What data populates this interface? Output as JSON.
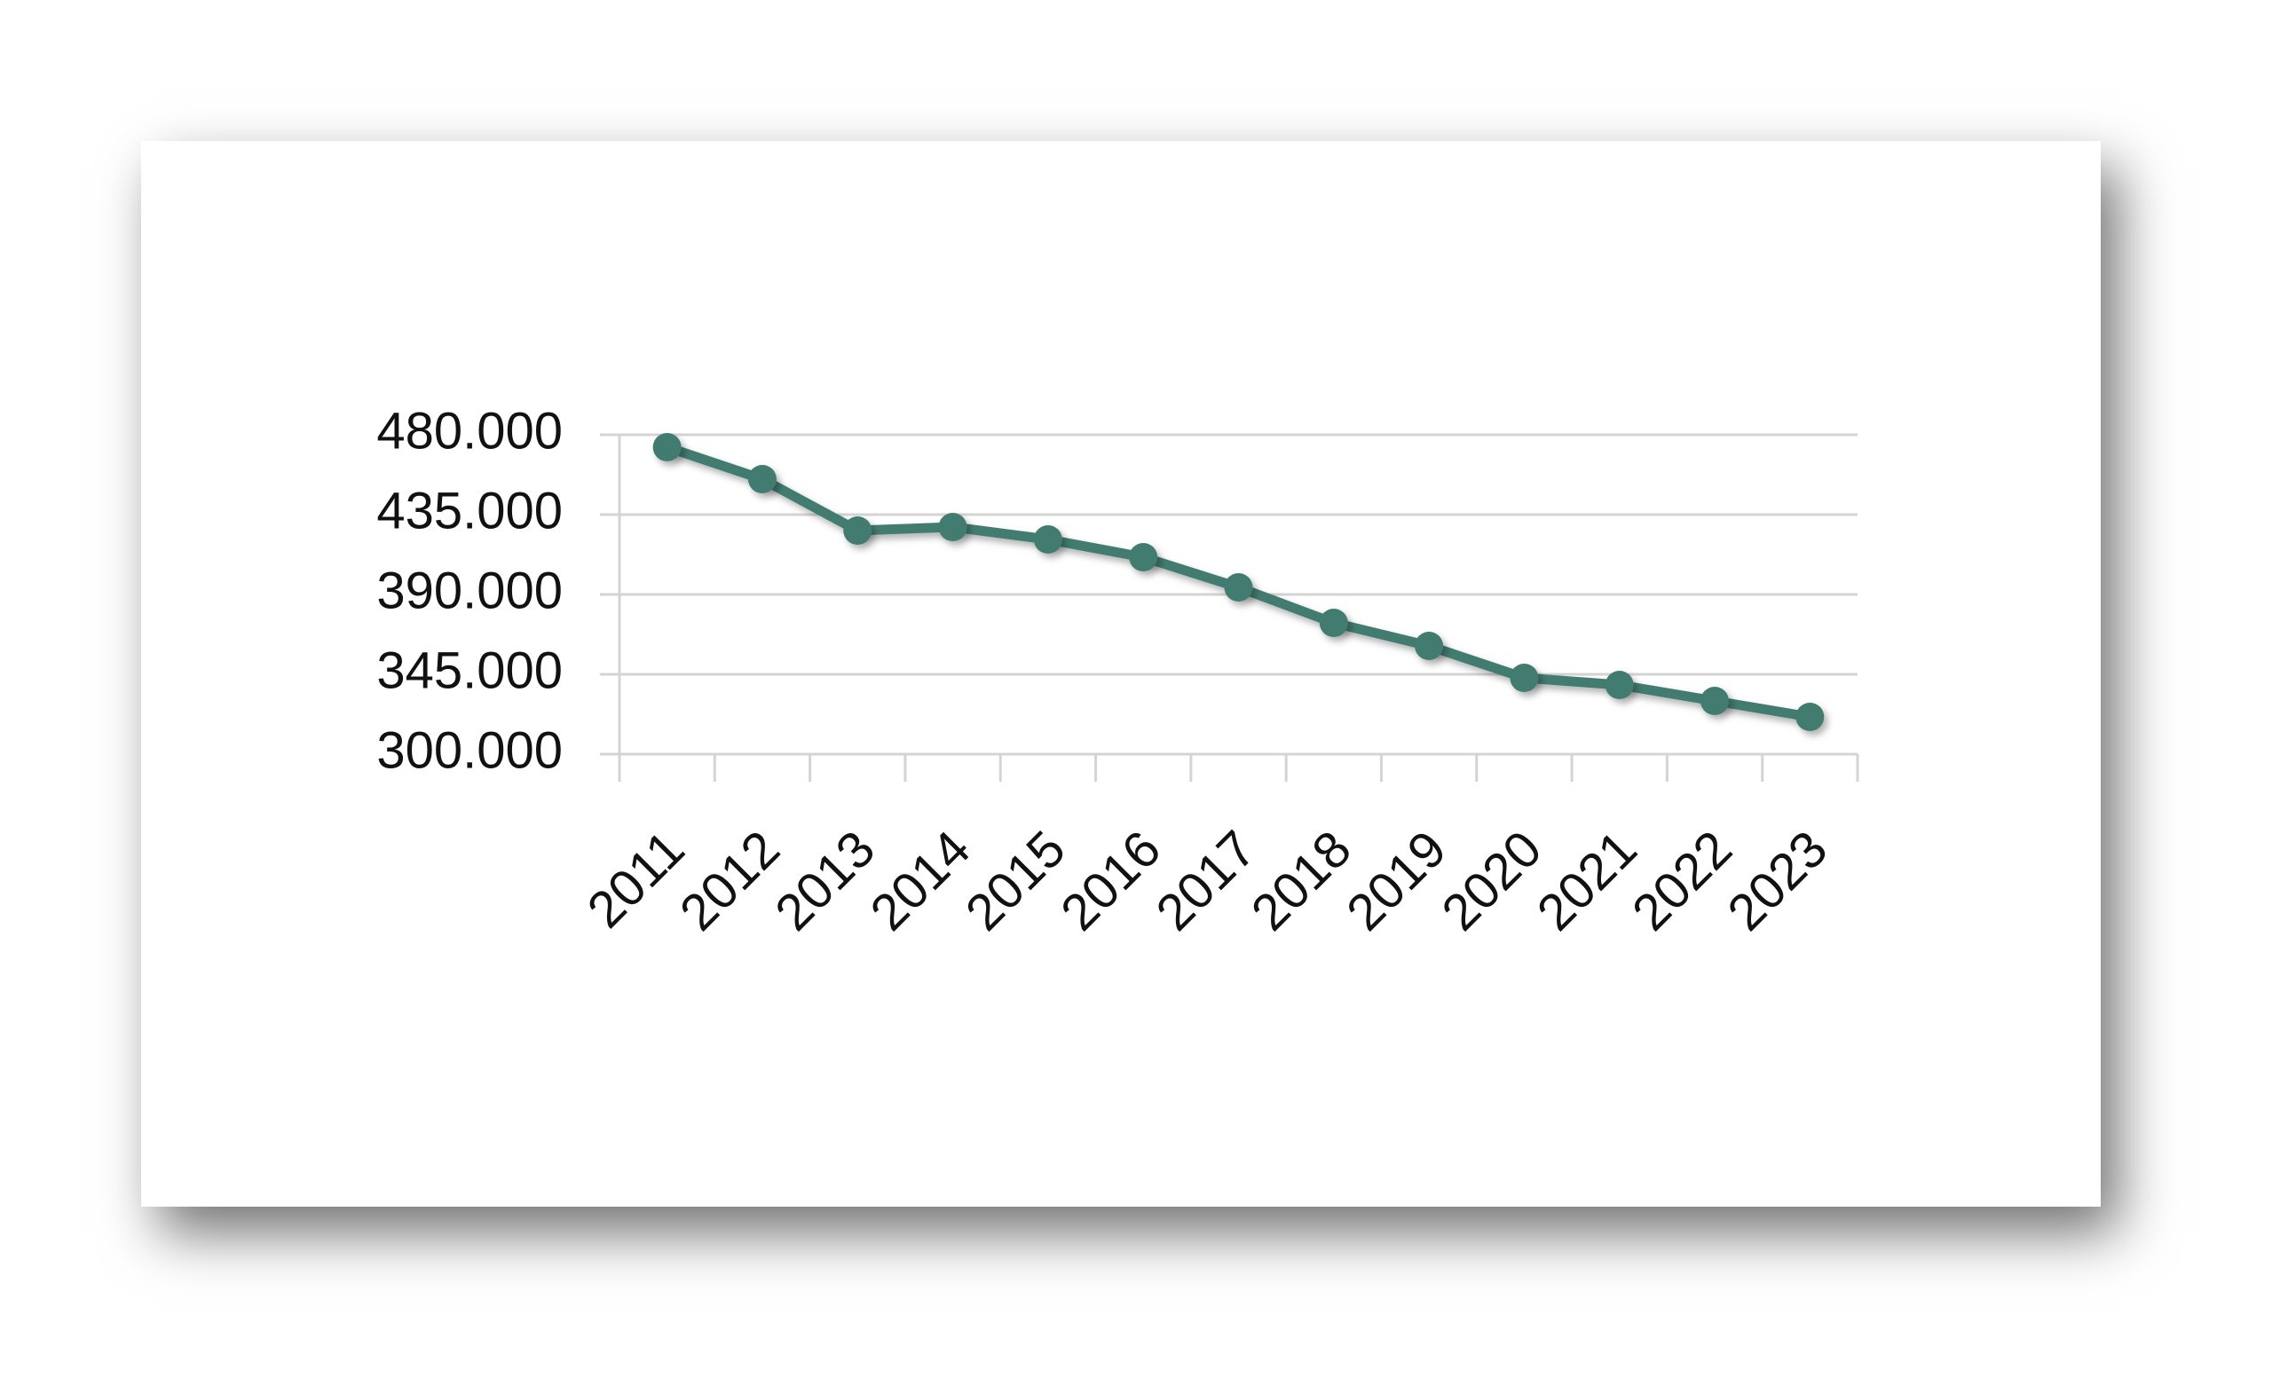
{
  "chart_data": {
    "type": "line",
    "categories": [
      "2011",
      "2012",
      "2013",
      "2014",
      "2015",
      "2016",
      "2017",
      "2018",
      "2019",
      "2020",
      "2021",
      "2022",
      "2023"
    ],
    "series": [
      {
        "color": "#437c70",
        "values": [
          473000,
          455000,
          426000,
          428000,
          421000,
          411000,
          394000,
          374000,
          361000,
          343000,
          339000,
          330000,
          321000
        ]
      }
    ],
    "ylim": [
      300000,
      480000
    ],
    "yticks": [
      {
        "value": 300000,
        "label": "300.000"
      },
      {
        "value": 345000,
        "label": "345.000"
      },
      {
        "value": 390000,
        "label": "390.000"
      },
      {
        "value": 435000,
        "label": "435.000"
      },
      {
        "value": 480000,
        "label": "480.000"
      }
    ],
    "grid": true
  }
}
